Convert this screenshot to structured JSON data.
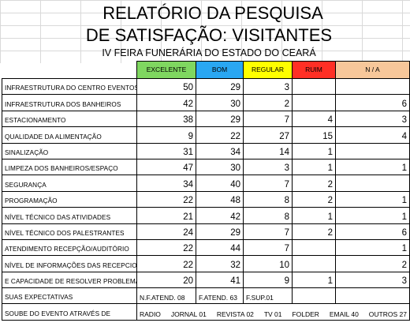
{
  "header": {
    "title_line1": "RELATÓRIO DA PESQUISA",
    "title_line2": "DE SATISFAÇÃO: VISITANTES",
    "subtitle": "IV FEIRA FUNERÁRIA DO ESTADO DO CEARÁ"
  },
  "columns": {
    "excelente": "EXCELENTE",
    "bom": "BOM",
    "regular": "REGULAR",
    "ruim": "RUIM",
    "na": "N / A"
  },
  "colors": {
    "excelente": "#7fd760",
    "bom": "#2aa7f2",
    "regular": "#ffff00",
    "ruim": "#ff2f25",
    "na": "#f7c79a"
  },
  "rows": [
    {
      "label": "INFRAESTRUTURA DO CENTRO EVENTOS",
      "excelente": "50",
      "bom": "29",
      "regular": "3",
      "ruim": "",
      "na": ""
    },
    {
      "label": "INFRAESTRUTURA DOS BANHEIROS",
      "excelente": "42",
      "bom": "30",
      "regular": "2",
      "ruim": "",
      "na": "6"
    },
    {
      "label": "ESTACIONAMENTO",
      "excelente": "38",
      "bom": "29",
      "regular": "7",
      "ruim": "4",
      "na": "3"
    },
    {
      "label": "QUALIDADE DA ALIMENTAÇÃO",
      "excelente": "9",
      "bom": "22",
      "regular": "27",
      "ruim": "15",
      "na": "4"
    },
    {
      "label": "SINALIZAÇÃO",
      "excelente": "31",
      "bom": "34",
      "regular": "14",
      "ruim": "1",
      "na": ""
    },
    {
      "label": "LIMPEZA DOS BANHEIROS/ESPAÇO",
      "excelente": "47",
      "bom": "30",
      "regular": "3",
      "ruim": "1",
      "na": "1"
    },
    {
      "label": "SEGURANÇA",
      "excelente": "34",
      "bom": "40",
      "regular": "7",
      "ruim": "2",
      "na": ""
    },
    {
      "label": "PROGRAMAÇÃO",
      "excelente": "22",
      "bom": "48",
      "regular": "8",
      "ruim": "2",
      "na": "1"
    },
    {
      "label": "NÍVEL TÉCNICO DAS ATIVIDADES",
      "excelente": "21",
      "bom": "42",
      "regular": "8",
      "ruim": "1",
      "na": "1"
    },
    {
      "label": "NÍVEL TÉCNICO DOS PALESTRANTES",
      "excelente": "24",
      "bom": "29",
      "regular": "7",
      "ruim": "2",
      "na": "6"
    },
    {
      "label": "ATENDIMENTO RECEPÇÃO/AUDITÓRIO",
      "excelente": "22",
      "bom": "44",
      "regular": "7",
      "ruim": "",
      "na": "1"
    },
    {
      "label": "NÍVEL DE INFORMAÇÕES DAS RECEPCIONISTAS",
      "excelente": "22",
      "bom": "32",
      "regular": "10",
      "ruim": "",
      "na": "2"
    },
    {
      "label": "E CAPACIDADE DE RESOLVER PROBLEMAS",
      "excelente": "20",
      "bom": "41",
      "regular": "9",
      "ruim": "1",
      "na": "3"
    }
  ],
  "expectativas": {
    "label": "SUAS EXPECTATIVAS",
    "c1": "N.F.ATEND. 08",
    "c2": "F.ATEND. 63",
    "c3": "F.SUP.01"
  },
  "soube": {
    "label": "SOUBE DO EVENTO ATRAVÉS DE",
    "items": [
      "RADIO",
      "JORNAL 01",
      "REVISTA 02",
      "TV 01",
      "FOLDER",
      "EMAIL 40",
      "OUTROS 27"
    ]
  }
}
